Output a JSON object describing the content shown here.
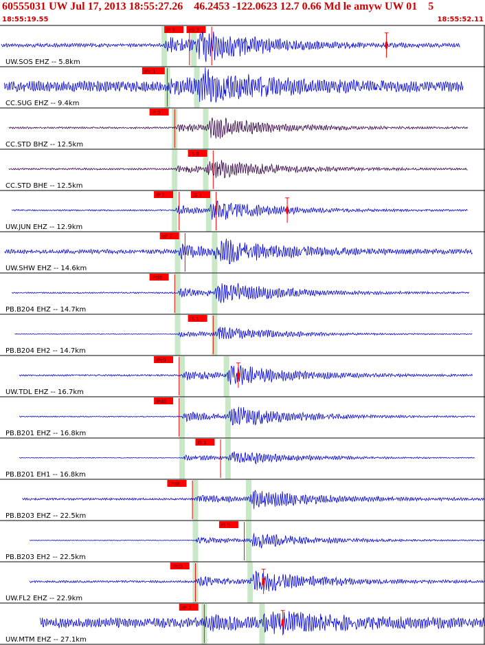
{
  "header": {
    "title": "60555031 UW Jul 17, 2013 18:55:27.26    46.2453 -122.0623 12.7 0.66 Md le amyw UW 01    5",
    "time_start": "18:55:19.55",
    "time_end": "18:55:52.11"
  },
  "colors": {
    "header_text": "#cc0000",
    "trace_blue": "#0000dd",
    "trace_dark": "#330044",
    "pick_red": "#ff0000",
    "window_green": "#c8e8c8",
    "separator": "#000000"
  },
  "chart_data": {
    "type": "line",
    "title": "60555031 UW Jul 17, 2013 18:55:27.26    46.2453 -122.0623 12.7 0.66 Md le amyw UW 01    5",
    "x_range": [
      "18:55:19.55",
      "18:55:52.11"
    ],
    "grid": false,
    "legend": "none",
    "series": [
      {
        "label": "UW.SOS EHZ -- 5.8km",
        "color": "trace_blue",
        "picks": [
          {
            "text": "iP 1",
            "t": 11.0
          },
          {
            "text": "eS 2",
            "t": 12.5
          }
        ],
        "p_time": 11.0,
        "s_time": 13.0,
        "amplitude": 0.9,
        "noise": 0.1,
        "trace_start": 0.0,
        "trace_end": 31.0,
        "amp_marker": 26.0
      },
      {
        "label": "CC.SUG EHZ -- 9.4km",
        "color": "trace_blue",
        "picks": [
          {
            "text": "iPc 1",
            "t": 9.5
          }
        ],
        "p_time": 11.2,
        "s_time": 13.2,
        "amplitude": 0.7,
        "noise": 0.3,
        "trace_start": 0.2,
        "trace_end": 31.2
      },
      {
        "label": "CC.STD BHZ -- 12.5km",
        "color": "trace_dark",
        "picks": [
          {
            "text": "iP 0",
            "t": 10.0
          }
        ],
        "p_time": 11.7,
        "s_time": 13.8,
        "amplitude": 0.55,
        "noise": 0.05,
        "trace_start": 0.5,
        "trace_end": 31.5
      },
      {
        "label": "CC.STD BHE -- 12.5km",
        "color": "trace_dark",
        "picks": [
          {
            "text": "iS 0",
            "t": 12.6
          }
        ],
        "p_time": 11.7,
        "s_time": 13.8,
        "amplitude": 0.5,
        "noise": 0.05,
        "trace_start": 0.5,
        "trace_end": 31.5
      },
      {
        "label": "UW.JUN EHZ -- 12.9km",
        "color": "trace_blue",
        "picks": [
          {
            "text": "iP 1",
            "t": 10.3
          },
          {
            "text": "iS 1",
            "t": 12.8
          }
        ],
        "p_time": 11.7,
        "s_time": 14.0,
        "amplitude": 0.55,
        "noise": 0.04,
        "trace_start": 0.7,
        "trace_end": 31.5,
        "amp_marker": 19.3
      },
      {
        "label": "UW.SHW EHZ -- 14.6km",
        "color": "trace_blue",
        "picks": [
          {
            "text": "eP 2",
            "t": 10.7
          }
        ],
        "p_time": 11.9,
        "s_time": 14.4,
        "amplitude": 0.7,
        "noise": 0.12,
        "trace_start": 0.2,
        "trace_end": 31.8
      },
      {
        "label": "PB.B204 EHZ -- 14.7km",
        "color": "trace_blue",
        "picks": [
          {
            "text": "iPd0",
            "t": 10.0
          }
        ],
        "p_time": 11.9,
        "s_time": 14.4,
        "amplitude": 0.6,
        "noise": 0.04,
        "trace_start": 0.7,
        "trace_end": 31.6
      },
      {
        "label": "PB.B204 EH2 -- 14.7km",
        "color": "trace_blue",
        "picks": [
          {
            "text": "iS 1",
            "t": 12.6
          }
        ],
        "p_time": 11.9,
        "s_time": 14.4,
        "amplitude": 0.4,
        "noise": 0.02,
        "trace_start": 0.9,
        "trace_end": 31.8
      },
      {
        "label": "UW.TDL EHZ -- 16.7km",
        "color": "trace_blue",
        "picks": [
          {
            "text": "iPc0",
            "t": 10.3
          }
        ],
        "p_time": 12.2,
        "s_time": 15.2,
        "amplitude": 0.6,
        "noise": 0.05,
        "trace_start": 1.2,
        "trace_end": 31.8,
        "amp_marker": 16.0
      },
      {
        "label": "PB.B201 EHZ -- 16.8km",
        "color": "trace_blue",
        "picks": [
          {
            "text": "iPd0",
            "t": 10.3
          }
        ],
        "p_time": 12.2,
        "s_time": 15.3,
        "amplitude": 0.6,
        "noise": 0.03,
        "trace_start": 1.2,
        "trace_end": 32.0
      },
      {
        "label": "PB.B201 EH1 -- 16.8km",
        "color": "trace_blue",
        "picks": [
          {
            "text": "iS 1",
            "t": 13.1
          }
        ],
        "p_time": 12.2,
        "s_time": 15.3,
        "amplitude": 0.4,
        "noise": 0.02,
        "trace_start": 1.2,
        "trace_end": 32.0
      },
      {
        "label": "PB.B203 EHZ -- 22.5km",
        "color": "trace_blue",
        "picks": [
          {
            "text": "iPd0",
            "t": 11.2
          }
        ],
        "p_time": 13.1,
        "s_time": 16.7,
        "amplitude": 0.55,
        "noise": 0.06,
        "trace_start": 1.4,
        "trace_end": 32.7
      },
      {
        "label": "PB.B203 EH2 -- 22.5km",
        "color": "trace_blue",
        "picks": [
          {
            "text": "iS 0",
            "t": 14.7
          }
        ],
        "p_time": 13.1,
        "s_time": 16.7,
        "amplitude": 0.45,
        "noise": 0.02,
        "trace_start": 1.9,
        "trace_end": 32.7
      },
      {
        "label": "UW.FL2 EHZ -- 22.9km",
        "color": "trace_blue",
        "picks": [
          {
            "text": "iPc0",
            "t": 11.4
          }
        ],
        "p_time": 13.1,
        "s_time": 16.8,
        "amplitude": 0.6,
        "noise": 0.06,
        "trace_start": 1.9,
        "trace_end": 32.7,
        "amp_marker": 17.7
      },
      {
        "label": "UW.MTM EHZ -- 27.1km",
        "color": "trace_blue",
        "picks": [
          {
            "text": "eP 2",
            "t": 12.0
          }
        ],
        "p_time": 13.7,
        "s_time": 17.6,
        "amplitude": 0.55,
        "noise": 0.28,
        "trace_start": 2.6,
        "trace_end": 32.7,
        "amp_marker": 19.0
      }
    ]
  }
}
